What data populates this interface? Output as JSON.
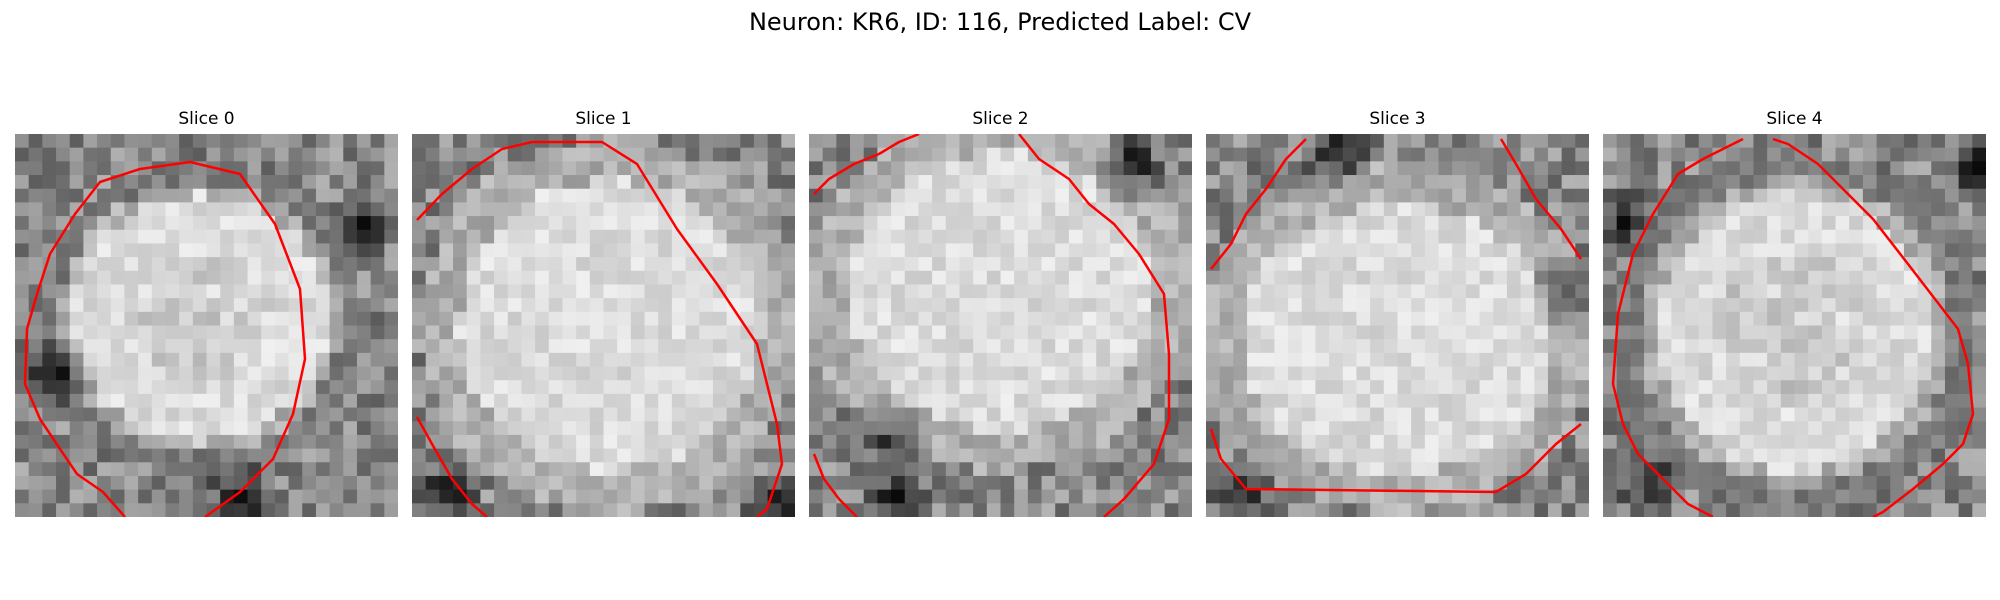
{
  "figure": {
    "title": "Neuron: KR6, ID: 116, Predicted Label: CV",
    "contour_color": "#ff0000"
  },
  "slices": [
    {
      "title": "Slice 0"
    },
    {
      "title": "Slice 1"
    },
    {
      "title": "Slice 2"
    },
    {
      "title": "Slice 3"
    },
    {
      "title": "Slice 4"
    }
  ]
}
